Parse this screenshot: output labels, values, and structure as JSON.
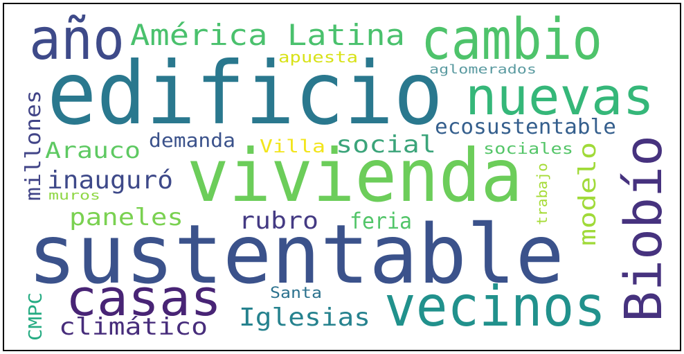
{
  "words": [
    "edificio",
    "vivienda",
    "sustentable",
    "año",
    "América Latina",
    "cambio",
    "nuevas",
    "Biobío",
    "apuesta",
    "aglomerados",
    "millones",
    "ecosustentable",
    "Arauco",
    "demanda",
    "Villa",
    "social",
    "sociales",
    "modelo",
    "trabajo",
    "inauguró",
    "muros",
    "paneles",
    "rubro",
    "feria",
    "casas",
    "vecinos",
    "Santa",
    "Iglesias",
    "climático",
    "CMPC"
  ]
}
